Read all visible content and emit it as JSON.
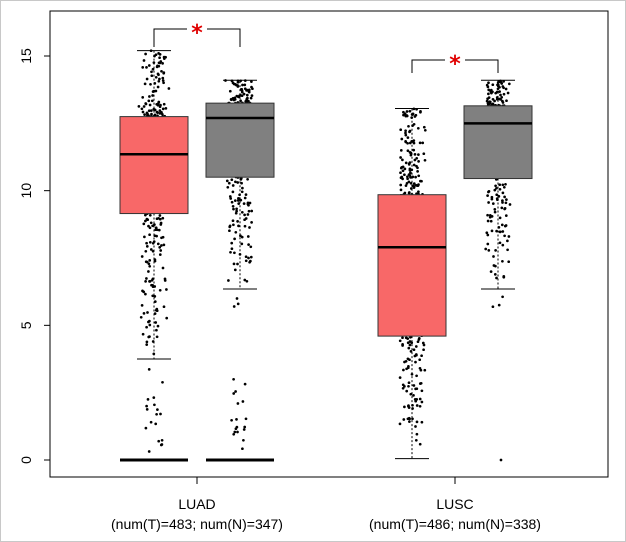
{
  "chart_data": {
    "type": "box",
    "title": "",
    "xlabel": "",
    "ylabel": "",
    "ylim": [
      -0.6,
      16.5
    ],
    "yticks": [
      0,
      5,
      10,
      15
    ],
    "grid": false,
    "colors": {
      "tumor": "#f86868",
      "normal": "#808080",
      "significance": "#e00000"
    },
    "groups": [
      {
        "label": "LUAD",
        "sublabel": "(num(T)=483; num(N)=347)",
        "significance": "*",
        "boxes": [
          {
            "series": "T",
            "n": 483,
            "q1": 9.15,
            "median": 11.35,
            "q3": 12.75,
            "whisker_low": 3.75,
            "whisker_high": 15.2,
            "zeros": true
          },
          {
            "series": "N",
            "n": 347,
            "q1": 10.5,
            "median": 12.7,
            "q3": 13.25,
            "whisker_low": 6.35,
            "whisker_high": 14.1,
            "zeros": true
          }
        ]
      },
      {
        "label": "LUSC",
        "sublabel": "(num(T)=486; num(N)=338)",
        "significance": "*",
        "boxes": [
          {
            "series": "T",
            "n": 486,
            "q1": 4.6,
            "median": 7.9,
            "q3": 9.85,
            "whisker_low": 0.05,
            "whisker_high": 13.05,
            "zeros": false
          },
          {
            "series": "N",
            "n": 338,
            "q1": 10.45,
            "median": 12.5,
            "q3": 13.15,
            "whisker_low": 6.35,
            "whisker_high": 14.1,
            "zeros": false
          }
        ]
      }
    ]
  }
}
